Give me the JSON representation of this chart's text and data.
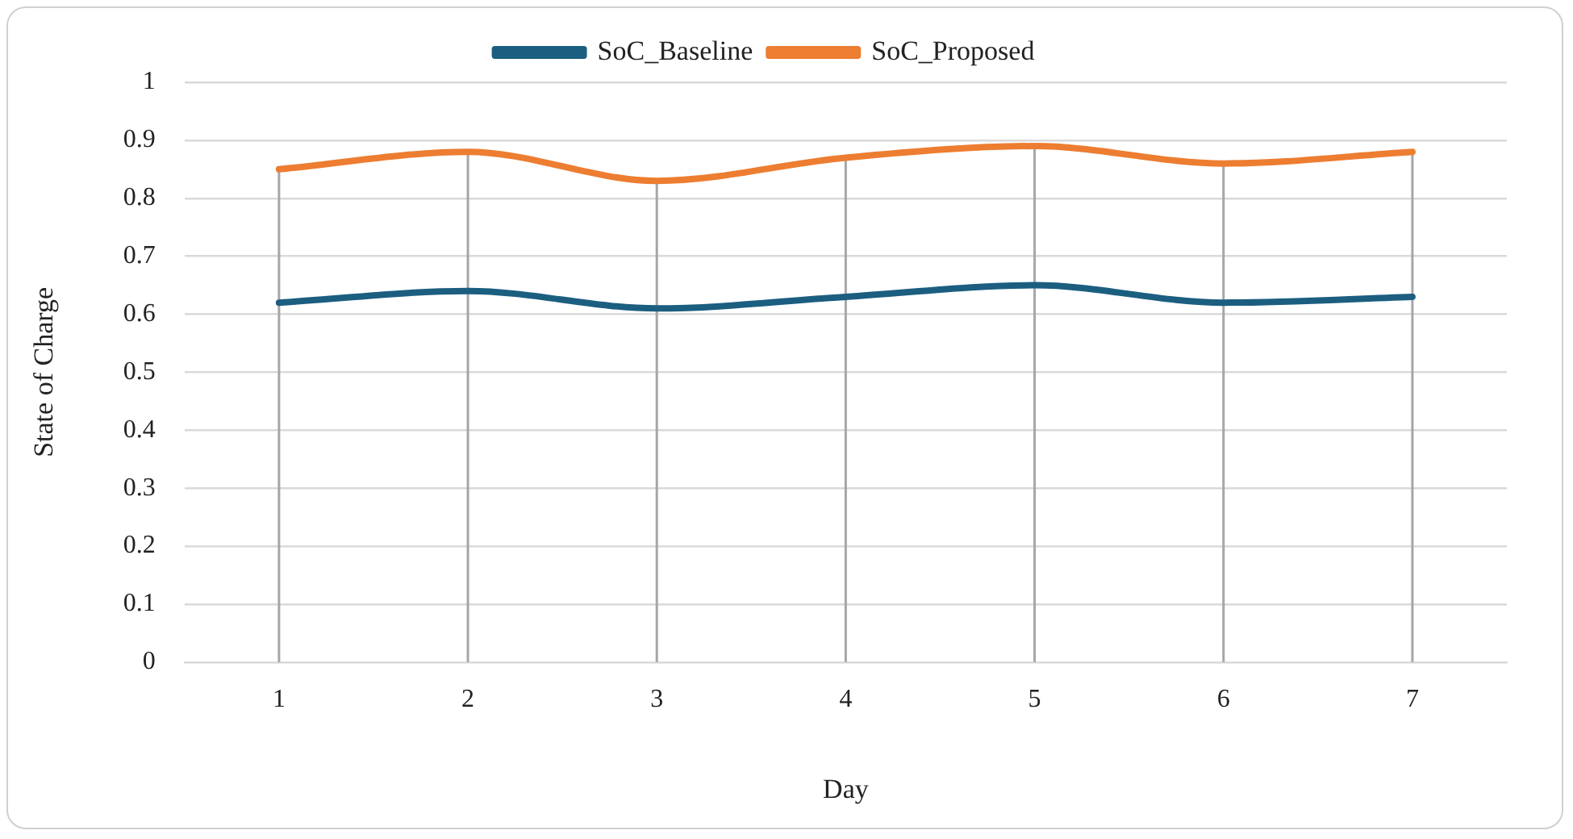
{
  "chart_data": {
    "type": "line",
    "xlabel": "Day",
    "ylabel": "State of Charge",
    "categories": [
      "1",
      "2",
      "3",
      "4",
      "5",
      "6",
      "7"
    ],
    "series": [
      {
        "name": "SoC_Baseline",
        "color": "#1b5e80",
        "values": [
          0.62,
          0.64,
          0.61,
          0.63,
          0.65,
          0.62,
          0.63
        ]
      },
      {
        "name": "SoC_Proposed",
        "color": "#ed7d31",
        "values": [
          0.85,
          0.88,
          0.83,
          0.87,
          0.89,
          0.86,
          0.88
        ]
      }
    ],
    "ylim": [
      0,
      1
    ],
    "yticks": [
      0,
      0.1,
      0.2,
      0.3,
      0.4,
      0.5,
      0.6,
      0.7,
      0.8,
      0.9,
      1
    ],
    "grid": true,
    "legend": "top",
    "marker": "none",
    "line_style": "solid"
  }
}
